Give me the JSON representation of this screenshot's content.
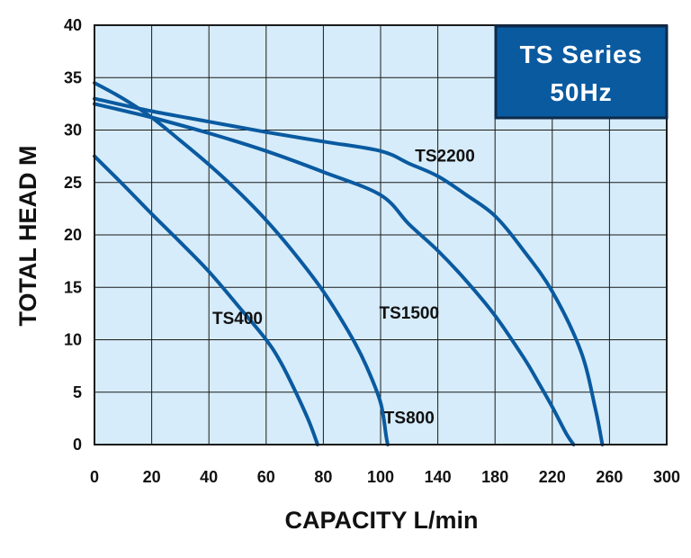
{
  "chart_data": {
    "type": "line",
    "title": "",
    "xlabel": "CAPACITY L/min",
    "ylabel": "TOTAL HEAD M",
    "xlim": [
      0,
      300
    ],
    "ylim": [
      0,
      40
    ],
    "x_ticks": [
      0,
      20,
      40,
      60,
      80,
      100,
      140,
      180,
      220,
      260,
      300
    ],
    "y_ticks": [
      0,
      5,
      10,
      15,
      20,
      25,
      30,
      35,
      40
    ],
    "grid": true,
    "badge": {
      "line1": "TS Series",
      "line2": "50Hz"
    },
    "colors": {
      "plot_bg": "#d6ecfa",
      "grid": "#1a1a1a",
      "curve": "#0a5aa0",
      "badge_bg": "#0a5aa0",
      "badge_border": "#0d2a4a"
    },
    "series": [
      {
        "name": "TS400",
        "x": [
          0,
          10,
          20,
          30,
          40,
          50,
          60,
          65,
          70,
          75,
          78
        ],
        "y": [
          27.5,
          24.8,
          22.0,
          19.3,
          16.5,
          13.3,
          10.0,
          7.9,
          5.2,
          2.2,
          0
        ]
      },
      {
        "name": "TS800",
        "x": [
          0,
          10,
          20,
          30,
          40,
          50,
          60,
          70,
          80,
          90,
          95,
          100,
          104,
          105
        ],
        "y": [
          34.5,
          33.0,
          31.2,
          29.0,
          26.7,
          24.2,
          21.4,
          18.2,
          14.6,
          10.2,
          7.5,
          4.0,
          0.7,
          0
        ]
      },
      {
        "name": "TS1500",
        "x": [
          0,
          20,
          40,
          60,
          80,
          100,
          120,
          140,
          160,
          180,
          200,
          210,
          220,
          230,
          235
        ],
        "y": [
          32.5,
          31.2,
          29.7,
          28.0,
          26.0,
          23.8,
          21.0,
          18.5,
          15.6,
          12.3,
          8.3,
          6.0,
          3.6,
          1.0,
          0
        ]
      },
      {
        "name": "TS2200",
        "x": [
          0,
          20,
          40,
          60,
          80,
          100,
          120,
          140,
          160,
          180,
          200,
          220,
          240,
          250,
          255
        ],
        "y": [
          33.0,
          31.8,
          30.8,
          29.8,
          28.9,
          28.0,
          26.8,
          25.6,
          23.8,
          21.8,
          18.5,
          14.6,
          8.9,
          3.5,
          0
        ]
      }
    ]
  }
}
